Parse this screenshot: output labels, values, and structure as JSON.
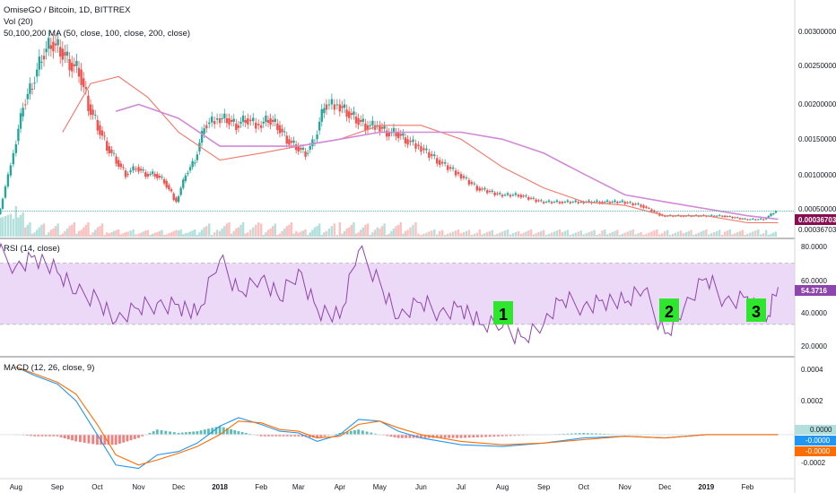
{
  "header": {
    "symbol_title": "OmiseGO / Bitcoin, 1D, BITTREX",
    "volume_indicator": "Vol (20)",
    "ma_indicator": "50,100,200 MA (50, close, 100, close, 200, close)"
  },
  "colors": {
    "up": "#26a69a",
    "down": "#ef5350",
    "ma50": "#f0776a",
    "ma200": "#d08ad6",
    "rsi": "#8e44ad",
    "rsi_band": "#ecd9f7",
    "macd": "#2196f3",
    "signal": "#ff6d00",
    "marker_bg": "#2ee62e",
    "price_badge": "#880e4f",
    "rsi_badge": "#8e44ad"
  },
  "markers": [
    "1",
    "2",
    "3"
  ],
  "chart_data": [
    {
      "type": "line",
      "title": "OmiseGO / Bitcoin, 1D, BITTREX",
      "subtitle": "50,100,200 MA (50, close, 100, close, 200, close)",
      "ylim": [
        0.0,
        0.0034
      ],
      "y_ticks": [
        "0.00300000",
        "0.00250000",
        "0.00200000",
        "0.00150000",
        "0.00100000",
        "0.00050000",
        "0.00036703"
      ],
      "x_ticks": [
        "Aug",
        "Sep",
        "Oct",
        "Nov",
        "Dec",
        "2018",
        "Feb",
        "Mar",
        "Apr",
        "May",
        "Jun",
        "Jul",
        "Aug",
        "Sep",
        "Oct",
        "Nov",
        "Dec",
        "2019",
        "Feb"
      ],
      "last_price_label": "0.00036703",
      "series": [
        {
          "name": "close",
          "x": [
            "2017-07-15",
            "2017-07-22",
            "2017-08-01",
            "2017-08-08",
            "2017-08-15",
            "2017-08-22",
            "2017-08-29",
            "2017-09-05",
            "2017-09-12",
            "2017-09-19",
            "2017-09-26",
            "2017-10-03",
            "2017-10-10",
            "2017-10-17",
            "2017-10-24",
            "2017-11-01",
            "2017-11-08",
            "2017-11-15",
            "2017-11-22",
            "2017-12-01",
            "2017-12-08",
            "2017-12-15",
            "2017-12-22",
            "2018-01-01",
            "2018-01-08",
            "2018-01-15",
            "2018-01-22",
            "2018-02-01",
            "2018-02-08",
            "2018-02-15",
            "2018-02-22",
            "2018-03-01",
            "2018-03-08",
            "2018-03-15",
            "2018-03-22",
            "2018-04-01",
            "2018-04-08",
            "2018-04-15",
            "2018-04-22",
            "2018-05-01",
            "2018-05-08",
            "2018-05-15",
            "2018-05-22",
            "2018-06-01",
            "2018-06-15",
            "2018-07-01",
            "2018-07-15",
            "2018-08-01",
            "2018-08-15",
            "2018-09-01",
            "2018-09-15",
            "2018-10-01",
            "2018-10-15",
            "2018-11-01",
            "2018-11-15",
            "2018-12-01",
            "2018-12-15",
            "2019-01-01",
            "2019-01-15",
            "2019-02-01",
            "2019-02-15",
            "2019-02-24"
          ],
          "y": [
            0.0001,
            0.0004,
            0.0012,
            0.0019,
            0.0022,
            0.0026,
            0.0028,
            0.0027,
            0.0025,
            0.0024,
            0.0019,
            0.0016,
            0.0013,
            0.0011,
            0.0009,
            0.001,
            0.0009,
            0.0009,
            0.0008,
            0.0005,
            0.0009,
            0.0011,
            0.0016,
            0.0017,
            0.0017,
            0.0016,
            0.0017,
            0.0016,
            0.0017,
            0.0016,
            0.0014,
            0.0013,
            0.0012,
            0.0014,
            0.0019,
            0.0019,
            0.0018,
            0.0017,
            0.0016,
            0.0016,
            0.0015,
            0.0015,
            0.0014,
            0.0013,
            0.0011,
            0.0009,
            0.0007,
            0.0006,
            0.0006,
            0.0005,
            0.0005,
            0.0005,
            0.0005,
            0.0005,
            0.00045,
            0.0003,
            0.0003,
            0.0003,
            0.0003,
            0.00025,
            0.00025,
            0.00036703
          ]
        },
        {
          "name": "MA 50",
          "x": [
            "2017-09-05",
            "2017-09-26",
            "2017-10-17",
            "2017-11-08",
            "2017-12-01",
            "2018-01-01",
            "2018-02-01",
            "2018-03-01",
            "2018-04-01",
            "2018-05-01",
            "2018-06-01",
            "2018-07-01",
            "2018-08-01",
            "2018-09-01",
            "2018-10-01",
            "2018-11-01",
            "2018-12-01",
            "2019-01-01",
            "2019-02-01",
            "2019-02-24"
          ],
          "y": [
            0.0015,
            0.0022,
            0.0023,
            0.002,
            0.0015,
            0.0011,
            0.0012,
            0.0013,
            0.0014,
            0.0016,
            0.0016,
            0.0014,
            0.001,
            0.0007,
            0.0005,
            0.00045,
            0.0003,
            0.0003,
            0.0002,
            0.0002
          ]
        },
        {
          "name": "MA 200",
          "x": [
            "2017-10-15",
            "2017-11-01",
            "2017-12-01",
            "2018-01-01",
            "2018-02-01",
            "2018-03-01",
            "2018-04-01",
            "2018-05-01",
            "2018-06-01",
            "2018-07-01",
            "2018-08-01",
            "2018-09-01",
            "2018-10-01",
            "2018-11-01",
            "2018-12-01",
            "2019-01-01",
            "2019-02-01",
            "2019-02-24"
          ],
          "y": [
            0.0018,
            0.0019,
            0.0017,
            0.0013,
            0.0013,
            0.0013,
            0.0014,
            0.0015,
            0.0015,
            0.0015,
            0.0014,
            0.0012,
            0.0009,
            0.0006,
            0.0005,
            0.0004,
            0.0003,
            0.00025
          ]
        }
      ]
    },
    {
      "type": "line",
      "title": "RSI (14, close)",
      "ylim": [
        10,
        85
      ],
      "y_ticks": [
        "80.0000",
        "60.0000",
        "40.0000",
        "20.0000"
      ],
      "bands": [
        30,
        70
      ],
      "last_value_label": "54.3716",
      "series": [
        {
          "name": "RSI",
          "x": [
            "2017-07-15",
            "2017-08-01",
            "2017-08-15",
            "2017-09-01",
            "2017-09-15",
            "2017-10-01",
            "2017-10-15",
            "2017-11-01",
            "2017-11-15",
            "2017-12-01",
            "2017-12-15",
            "2018-01-01",
            "2018-01-15",
            "2018-02-01",
            "2018-02-15",
            "2018-03-01",
            "2018-03-15",
            "2018-04-01",
            "2018-04-15",
            "2018-05-01",
            "2018-05-15",
            "2018-06-01",
            "2018-06-15",
            "2018-07-01",
            "2018-07-15",
            "2018-08-01",
            "2018-08-15",
            "2018-09-01",
            "2018-09-15",
            "2018-10-01",
            "2018-10-15",
            "2018-11-01",
            "2018-11-15",
            "2018-12-01",
            "2018-12-15",
            "2019-01-01",
            "2019-01-15",
            "2019-02-01",
            "2019-02-15",
            "2019-02-24"
          ],
          "y": [
            80,
            68,
            75,
            64,
            50,
            48,
            32,
            40,
            44,
            43,
            36,
            72,
            52,
            60,
            46,
            66,
            40,
            34,
            78,
            58,
            34,
            44,
            38,
            42,
            30,
            28,
            22,
            30,
            46,
            42,
            46,
            44,
            52,
            24,
            40,
            60,
            46,
            48,
            32,
            54.3716
          ]
        }
      ]
    },
    {
      "type": "bar",
      "title": "MACD (12, 26, close, 9)",
      "ylim": [
        -0.00025,
        0.00045
      ],
      "y_ticks": [
        "0.0004",
        "0.0002",
        "0.0000",
        "-0.0002"
      ],
      "value_labels": [
        "0.0000",
        "-0.0000",
        "-0.0000"
      ],
      "series": [
        {
          "name": "MACD",
          "x": [
            "2017-08-01",
            "2017-08-15",
            "2017-09-01",
            "2017-09-15",
            "2017-10-01",
            "2017-10-15",
            "2017-11-01",
            "2017-11-15",
            "2017-12-01",
            "2017-12-15",
            "2018-01-01",
            "2018-01-15",
            "2018-02-01",
            "2018-02-15",
            "2018-03-01",
            "2018-03-15",
            "2018-04-01",
            "2018-04-15",
            "2018-05-01",
            "2018-05-15",
            "2018-06-01",
            "2018-07-01",
            "2018-08-01",
            "2018-09-01",
            "2018-10-01",
            "2018-11-01",
            "2018-12-01",
            "2019-01-01",
            "2019-02-01",
            "2019-02-24"
          ],
          "y": [
            0.0004,
            0.00035,
            0.0003,
            0.0002,
            0.0,
            -0.00018,
            -0.0002,
            -0.00012,
            -0.0001,
            -5e-05,
            5e-05,
            0.0001,
            6e-05,
            2e-05,
            1e-05,
            -4e-05,
            0.0,
            9e-05,
            8e-05,
            2e-05,
            -2e-05,
            -6e-05,
            -7e-05,
            -5e-05,
            -2e-05,
            -1e-05,
            -2e-05,
            0.0,
            0.0,
            0.0
          ]
        },
        {
          "name": "Signal",
          "x": [
            "2017-08-01",
            "2017-08-15",
            "2017-09-01",
            "2017-09-15",
            "2017-10-01",
            "2017-10-15",
            "2017-11-01",
            "2017-11-15",
            "2017-12-01",
            "2017-12-15",
            "2018-01-01",
            "2018-01-15",
            "2018-02-01",
            "2018-02-15",
            "2018-03-01",
            "2018-03-15",
            "2018-04-01",
            "2018-04-15",
            "2018-05-01",
            "2018-05-15",
            "2018-06-01",
            "2018-07-01",
            "2018-08-01",
            "2018-09-01",
            "2018-10-01",
            "2018-11-01",
            "2018-12-01",
            "2019-01-01",
            "2019-02-01",
            "2019-02-24"
          ],
          "y": [
            0.0004,
            0.00036,
            0.00031,
            0.00024,
            6e-05,
            -0.00012,
            -0.00018,
            -0.00015,
            -0.00011,
            -7e-05,
            0.0,
            8e-05,
            7e-05,
            3e-05,
            2e-05,
            -2e-05,
            -1e-05,
            6e-05,
            8e-05,
            4e-05,
            0.0,
            -4e-05,
            -6e-05,
            -5e-05,
            -3e-05,
            -1e-05,
            -2e-05,
            0.0,
            0.0,
            0.0
          ]
        }
      ]
    }
  ]
}
